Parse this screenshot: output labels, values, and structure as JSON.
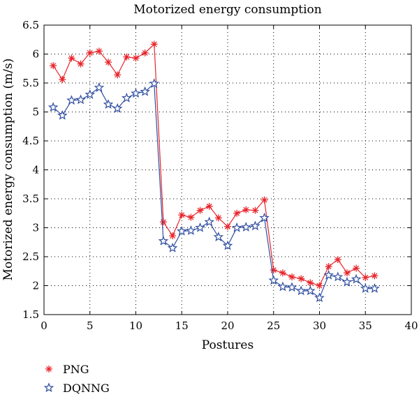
{
  "chart_data": {
    "type": "line",
    "title": "Motorized energy consumption",
    "xlabel": "Postures",
    "ylabel": "Motorized energy consumption (m/s)",
    "xlim": [
      0,
      40
    ],
    "ylim": [
      1.5,
      6.5
    ],
    "xticks": [
      0,
      5,
      10,
      15,
      20,
      25,
      30,
      35,
      40
    ],
    "yticks": [
      1.5,
      2,
      2.5,
      3,
      3.5,
      4,
      4.5,
      5,
      5.5,
      6,
      6.5
    ],
    "grid": true,
    "legend_position": "bottom-left, below plot",
    "x": [
      1,
      2,
      3,
      4,
      5,
      6,
      7,
      8,
      9,
      10,
      11,
      12,
      13,
      14,
      15,
      16,
      17,
      18,
      19,
      20,
      21,
      22,
      23,
      24,
      25,
      26,
      27,
      28,
      29,
      30,
      31,
      32,
      33,
      34,
      35,
      36
    ],
    "series": [
      {
        "name": "PNG",
        "color": "#e8242b",
        "marker": "asterisk",
        "values": [
          5.8,
          5.56,
          5.93,
          5.83,
          6.02,
          6.05,
          5.86,
          5.64,
          5.95,
          5.93,
          6.02,
          6.17,
          3.1,
          2.86,
          3.22,
          3.18,
          3.3,
          3.37,
          3.17,
          3.02,
          3.25,
          3.31,
          3.3,
          3.48,
          2.27,
          2.22,
          2.15,
          2.12,
          2.05,
          2.0,
          2.33,
          2.45,
          2.22,
          2.3,
          2.14,
          2.17
        ]
      },
      {
        "name": "DQNNG",
        "color": "#2f4ea0",
        "marker": "star",
        "values": [
          5.08,
          4.94,
          5.2,
          5.21,
          5.3,
          5.42,
          5.13,
          5.06,
          5.24,
          5.32,
          5.35,
          5.49,
          2.77,
          2.65,
          2.94,
          2.95,
          3.0,
          3.1,
          2.84,
          2.69,
          3.0,
          3.01,
          3.03,
          3.17,
          2.09,
          1.98,
          1.97,
          1.91,
          1.91,
          1.79,
          2.18,
          2.15,
          2.06,
          2.11,
          1.95,
          1.95
        ]
      }
    ]
  }
}
